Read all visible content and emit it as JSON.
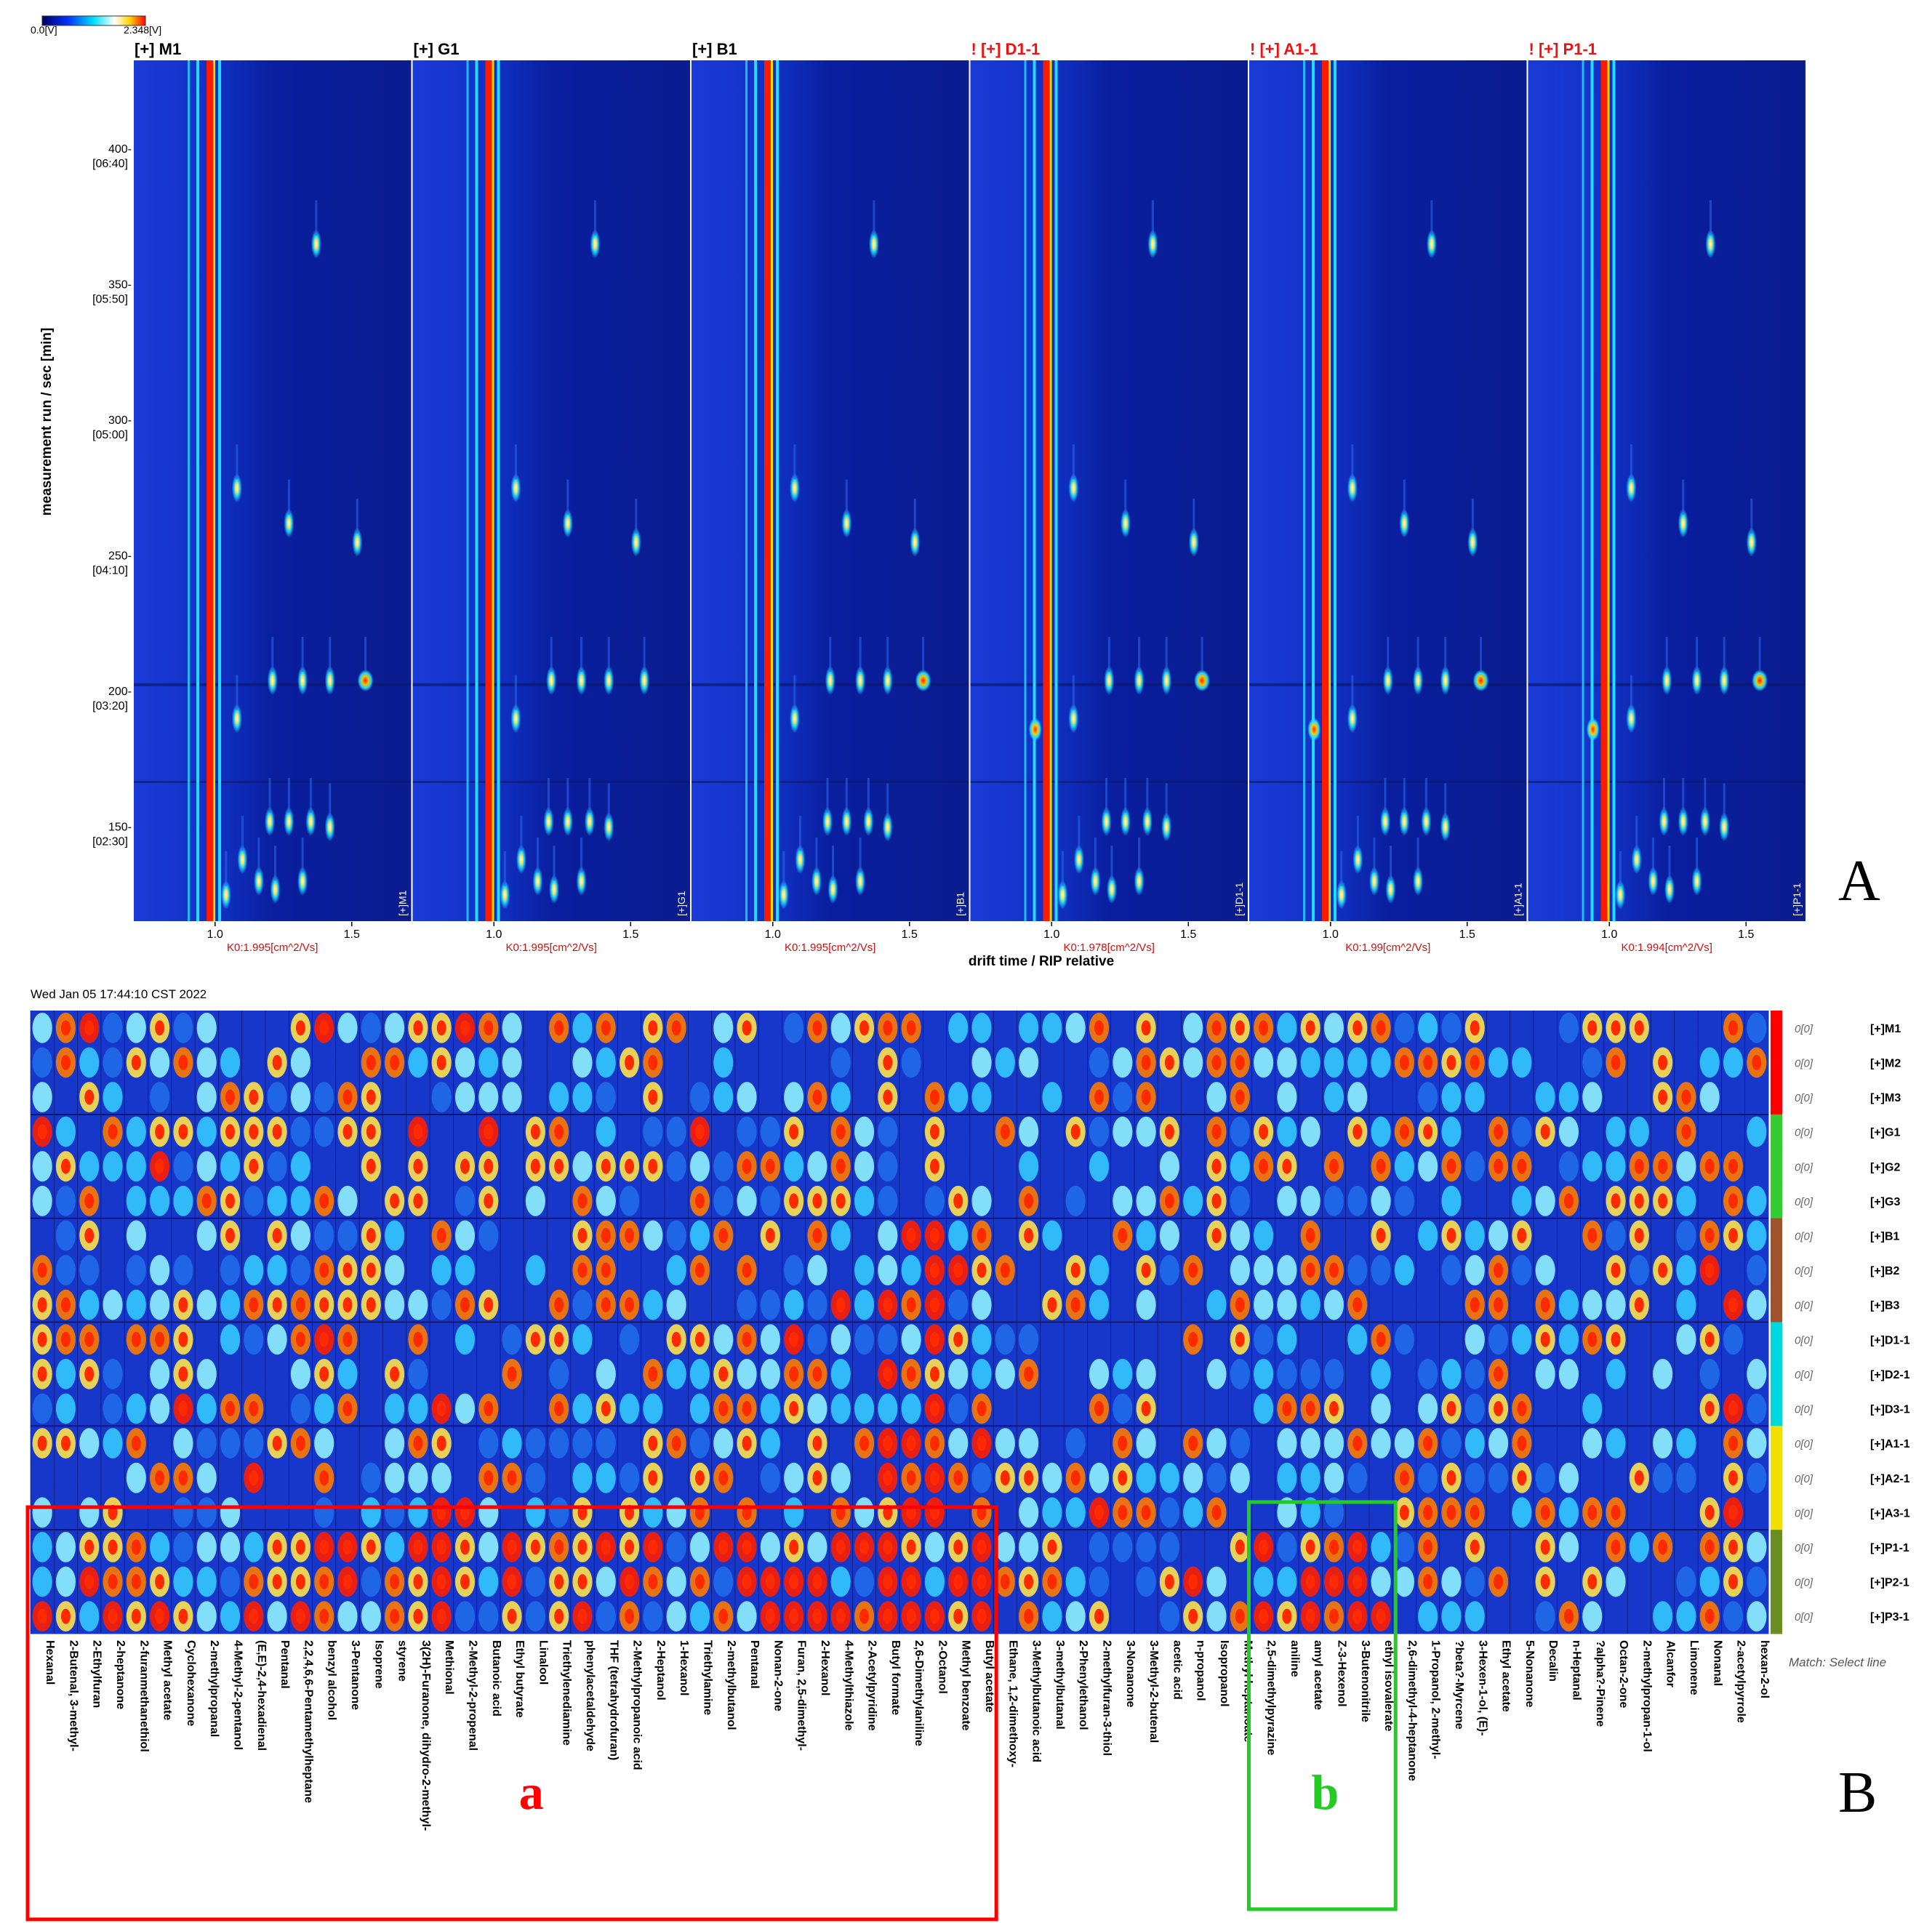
{
  "chart_data": [
    {
      "type": "heatmap",
      "panel_letter": "A",
      "colorbar": {
        "min_label": "0.0[V]",
        "max_label": "2.348[V]"
      },
      "ylabel": "measurement run / sec [min]",
      "xlabel": "drift time / RIP relative",
      "y_range": [
        115,
        433
      ],
      "x_range": [
        0.7,
        1.72
      ],
      "y_ticks": [
        {
          "value": 400,
          "label": "400-",
          "sub": "[06:40]"
        },
        {
          "value": 350,
          "label": "350-",
          "sub": "[05:50]"
        },
        {
          "value": 300,
          "label": "300-",
          "sub": "[05:00]"
        },
        {
          "value": 250,
          "label": "250-",
          "sub": "[04:10]"
        },
        {
          "value": 200,
          "label": "200-",
          "sub": "[03:20]"
        },
        {
          "value": 150,
          "label": "150-",
          "sub": "[02:30]"
        }
      ],
      "x_ticks": [
        {
          "value": 1.0,
          "label": "1.0"
        },
        {
          "value": 1.5,
          "label": "1.5"
        }
      ],
      "panels": [
        {
          "title": "[+] M1",
          "flag": "",
          "side": "[+]M1",
          "k0": "K0:1.995[cm^2/Vs]",
          "rip": 0.99
        },
        {
          "title": "[+] G1",
          "flag": "",
          "side": "[+]G1",
          "k0": "K0:1.995[cm^2/Vs]",
          "rip": 0.99
        },
        {
          "title": "[+] B1",
          "flag": "",
          "side": "[+]B1",
          "k0": "K0:1.995[cm^2/Vs]",
          "rip": 0.99
        },
        {
          "title": "[+] D1-1",
          "flag": "!",
          "side": "[+]D1-1",
          "k0": "K0:1.978[cm^2/Vs]",
          "rip": 0.99
        },
        {
          "title": "[+] A1-1",
          "flag": "!",
          "side": "[+]A1-1",
          "k0": "K0:1.99[cm^2/Vs]",
          "rip": 0.99
        },
        {
          "title": "[+] P1-1",
          "flag": "!",
          "side": "[+]P1-1",
          "k0": "K0:1.994[cm^2/Vs]",
          "rip": 0.99
        }
      ],
      "peaks": [
        {
          "x": 1.21,
          "y": 204
        },
        {
          "x": 1.32,
          "y": 204
        },
        {
          "x": 1.42,
          "y": 204
        },
        {
          "x": 1.55,
          "y": 204
        },
        {
          "x": 1.08,
          "y": 190
        },
        {
          "x": 1.2,
          "y": 152
        },
        {
          "x": 1.27,
          "y": 152
        },
        {
          "x": 1.35,
          "y": 152
        },
        {
          "x": 1.42,
          "y": 150
        },
        {
          "x": 1.1,
          "y": 138
        },
        {
          "x": 1.16,
          "y": 130
        },
        {
          "x": 1.22,
          "y": 127
        },
        {
          "x": 1.32,
          "y": 130
        },
        {
          "x": 1.04,
          "y": 125
        },
        {
          "x": 1.08,
          "y": 275
        },
        {
          "x": 1.27,
          "y": 262
        },
        {
          "x": 1.37,
          "y": 365
        },
        {
          "x": 1.52,
          "y": 255
        }
      ],
      "series_note": "ion mobility topographic plots, one per sample"
    },
    {
      "type": "heatmap",
      "panel_letter": "B",
      "timestamp": "Wed Jan 05 17:44:10 CST 2022",
      "match_note": "Match: Select line",
      "row_tag": "0[0]",
      "rows": [
        "[+]M1",
        "[+]M2",
        "[+]M3",
        "[+]G1",
        "[+]G2",
        "[+]G3",
        "[+]B1",
        "[+]B2",
        "[+]B3",
        "[+]D1-1",
        "[+]D2-1",
        "[+]D3-1",
        "[+]A1-1",
        "[+]A2-1",
        "[+]A3-1",
        "[+]P1-1",
        "[+]P2-1",
        "[+]P3-1"
      ],
      "group_colors": [
        "#ff0000",
        "#ff0000",
        "#ff0000",
        "#33cc33",
        "#33cc33",
        "#33cc33",
        "#a0522d",
        "#a0522d",
        "#a0522d",
        "#00d8e0",
        "#00d8e0",
        "#00d8e0",
        "#f0e000",
        "#f0e000",
        "#f0e000",
        "#6b8e23",
        "#6b8e23",
        "#6b8e23"
      ],
      "compounds": [
        "Hexanal",
        "2-Butenal, 3-methyl-",
        "2-Ethylfuran",
        "2-heptanone",
        "2-furanmethanethiol",
        "Methyl acetate",
        "Cyclohexanone",
        "2-methylpropanal",
        "4-Methyl-2-pentanol",
        "(E,E)-2,4-hexadienal",
        "Pentanal",
        "2,2,4,6,6-Pentamethylheptane",
        "benzyl alcohol",
        "3-Pentanone",
        "Isoprene",
        "styrene",
        "3(2H)-Furanone, dihydro-2-methyl-",
        "Methional",
        "2-Methyl-2-propenal",
        "Butanoic acid",
        "Ethyl butyrate",
        "Linalool",
        "Triethylenediamine",
        "phenylacetaldehyde",
        "THF (tetrahydrofuran)",
        "2-Methylpropanoic acid",
        "2-Heptanol",
        "1-Hexanol",
        "Triethylamine",
        "2-methylbutanol",
        "Pentanal",
        "Nonan-2-one",
        "Furan, 2,5-dimethyl-",
        "2-Hexanol",
        "4-Methylthiazole",
        "2-Acetylpyridine",
        "Butyl formate",
        "2,6-Dimethylaniline",
        "2-Octanol",
        "Methyl benzoate",
        "Butyl acetate",
        "Ethane, 1,2-dimethoxy-",
        "3-Methylbutanoic acid",
        "3-methylbutanal",
        "2-Phenylethanol",
        "2-methylfuran-3-thiol",
        "3-Nonanone",
        "3-Methyl-2-butenal",
        "acetic acid",
        "n-propanol",
        "Isopropanol",
        "Methyl heptanoate",
        "2,5-dimethylpyrazine",
        "aniline",
        "amyl acetate",
        "Z-3-Hexenol",
        "3-Butenonitrile",
        "ethyl isovalerate",
        "2,6-dimethyl-4-heptanone",
        "1-Propanol, 2-methyl-",
        "?beta?-Myrcene",
        "3-Hexen-1-ol, (E)-",
        "Ethyl acetate",
        "5-Nonanone",
        "Decalin",
        "n-Heptanal",
        "?alpha?-Pinene",
        "Octan-2-one",
        "2-methylpropan-1-ol",
        "Alcanfor",
        "Limonene",
        "Nonanal",
        "2-acetylpyrrole",
        "hexan-2-ol"
      ],
      "annotations": [
        {
          "label": "a",
          "color": "#ff0000",
          "from_compound": 0,
          "to_compound": 40
        },
        {
          "label": "b",
          "color": "#22cc22",
          "from_compound": 52,
          "to_compound": 57
        }
      ],
      "row_groups_note": "M, G, B, D, A, P sample groups in triplicate"
    }
  ],
  "panel_labels": {
    "A": "A",
    "B": "B"
  }
}
